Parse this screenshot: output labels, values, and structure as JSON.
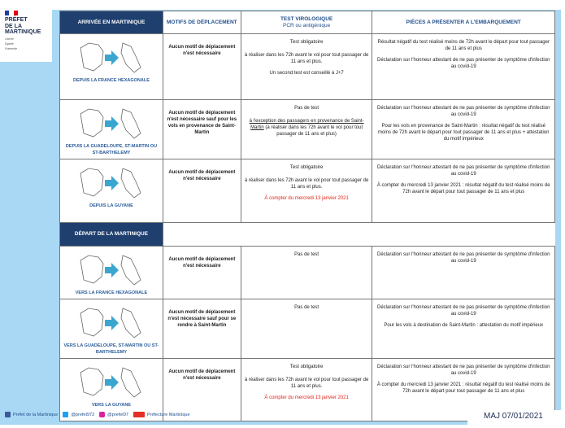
{
  "logo": {
    "lines": [
      "PRÉFET",
      "DE LA",
      "MARTINIQUE"
    ],
    "motto": [
      "Liberté",
      "Égalité",
      "Fraternité"
    ]
  },
  "header": {
    "arrival": "ARRIVÉE EN MARTINIQUE",
    "motifs": "MOTIFS DE DÉPLACEMENT",
    "test": "TEST VIROLOGIQUE",
    "test_sub": "PCR ou antigénique",
    "pieces": "PIÈCES A PRÉSENTER A L'EMBARQUEMENT"
  },
  "departure_header": "DÉPART DE LA MARTINIQUE",
  "rows": [
    {
      "place": "DEPUIS LA FRANCE HEXAGONALE",
      "motif": "Aucun motif de déplacement n'est nécessaire",
      "test": [
        "Test obligatoire",
        "à réaliser dans les 72h avant le vol pour tout passager de 11 ans et plus.",
        "Un second test est conseillé à J+7"
      ],
      "pieces": [
        "Résultat négatif du test réalisé moins de 72h avant le départ pour tout passager de 11 ans et plus",
        "Déclaration sur l'honneur attestant de ne pas présenter de symptôme d'infection au covid-19"
      ]
    },
    {
      "place": "DEPUIS LA GUADELOUPE, ST-MARTIN OU ST-BARTHELEMY",
      "motif": "Aucun motif de déplacement n'est nécessaire sauf pour les vols en provenance de Saint-Martin",
      "test": [
        "Pas de test"
      ],
      "test_underlined": "à l'exception des passagers en provenance de Saint-Martin",
      "test_rest": " (à réaliser dans les 72h avant le vol pour tout passager de 11 ans et plus)",
      "pieces": [
        "Déclaration sur l'honneur attestant de ne pas présenter de symptôme d'infection au covid-19",
        "Pour les vols en provenance de Saint-Martin : résultat négatif du test réalisé moins de 72h avant le départ pour tout passager de 11 ans et plus + attestation du motif impérieux"
      ]
    },
    {
      "place": "DEPUIS LA GUYANE",
      "motif": "Aucun motif de déplacement n'est nécessaire",
      "test": [
        "Test obligatoire",
        "à réaliser dans les 72h avant le vol pour tout passager de 11 ans et plus."
      ],
      "test_red": "À compter du mercredi 13 janvier 2021",
      "pieces": [
        "Déclaration sur l'honneur attestant de ne pas présenter de symptôme d'infection au covid-19",
        "À compter du mercredi 13 janvier 2021 : résultat négatif du test réalisé moins de 72h avant le départ pour tout passager de 11 ans et plus"
      ]
    },
    {
      "place": "VERS LA FRANCE HEXAGONALE",
      "motif": "Aucun motif de déplacement n'est nécessaire",
      "test": [
        "Pas de test"
      ],
      "pieces": [
        "Déclaration sur l'honneur attestant de ne pas présenter de symptôme d'infection au covid-19"
      ]
    },
    {
      "place": "VERS LA GUADELOUPE, ST-MARTIN OU ST-BARTHELEMY",
      "motif": "Aucun motif de déplacement n'est nécessaire sauf pour se rendre à Saint-Martin",
      "test": [
        "Pas de test"
      ],
      "pieces": [
        "Déclaration sur l'honneur attestant de ne pas présenter de symptôme d'infection au covid-19",
        "Pour les vols à destination de Saint-Martin : attestation du motif impérieux"
      ]
    },
    {
      "place": "VERS LA GUYANE",
      "motif": "Aucun motif de déplacement n'est nécessaire",
      "test": [
        "Test obligatoire",
        "à réaliser dans les 72h avant le vol pour tout passager de 11 ans et plus."
      ],
      "test_red": "À compter du mercredi 13 janvier 2021",
      "pieces": [
        "Déclaration sur l'honneur attestant de ne pas présenter de symptôme d'infection au covid-19",
        "À compter du mercredi 13 janvier 2021 : résultat négatif du test réalisé moins de 72h avant le départ pour tout passager de 11 ans et plus"
      ]
    }
  ],
  "footer": {
    "facebook": "Préfet de la Martinique",
    "twitter": "@prefet972",
    "instagram": "@prefet97",
    "youtube": "Préfecture Martinique"
  },
  "update": "MAJ 07/01/2021",
  "colors": {
    "accent": "#1f3f6f",
    "background": "#a8d8f4",
    "highlight": "#e3231b"
  }
}
